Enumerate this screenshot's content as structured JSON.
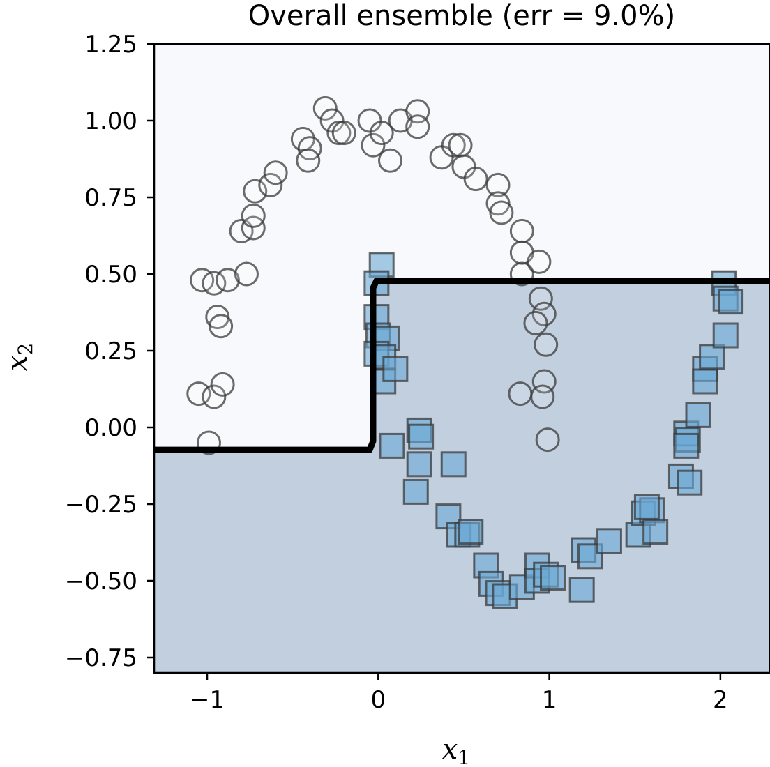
{
  "chart_data": {
    "type": "scatter",
    "title": "Overall ensemble (err = 9.0%)",
    "xlabel": "x",
    "xlabel_sub": "1",
    "ylabel": "x",
    "ylabel_sub": "2",
    "xlim": [
      -1.31,
      2.29
    ],
    "ylim": [
      -0.8,
      1.25
    ],
    "xticks": [
      -1,
      0,
      1,
      2
    ],
    "xtick_labels": [
      "−1",
      "0",
      "1",
      "2"
    ],
    "yticks": [
      1.25,
      1.0,
      0.75,
      0.5,
      0.25,
      0.0,
      -0.25,
      -0.5,
      -0.75
    ],
    "ytick_labels": [
      "1.25",
      "1.00",
      "0.75",
      "0.50",
      "0.25",
      "0.00",
      "−0.25",
      "−0.50",
      "−0.75"
    ],
    "region_colors": {
      "class_0": "#f7f9fc",
      "class_1": "#c1cfdf"
    },
    "decision_boundary": {
      "color": "#000000",
      "points": [
        [
          -1.31,
          -0.073
        ],
        [
          -0.05,
          -0.073
        ],
        [
          -0.03,
          -0.045
        ],
        [
          -0.03,
          0.455
        ],
        [
          -0.01,
          0.478
        ],
        [
          2.29,
          0.478
        ]
      ]
    },
    "series": [
      {
        "marker": "circle",
        "fill": "#ffffff",
        "fill_opacity": 0.15,
        "edge": "#3a3a3a",
        "points": [
          [
            -1.03,
            0.48
          ],
          [
            -0.96,
            0.47
          ],
          [
            -0.88,
            0.48
          ],
          [
            -0.77,
            0.5
          ],
          [
            -0.94,
            0.36
          ],
          [
            -0.92,
            0.33
          ],
          [
            -1.05,
            0.11
          ],
          [
            -0.96,
            0.1
          ],
          [
            -0.91,
            0.14
          ],
          [
            -0.99,
            -0.05
          ],
          [
            -0.8,
            0.64
          ],
          [
            -0.73,
            0.65
          ],
          [
            -0.73,
            0.69
          ],
          [
            -0.72,
            0.77
          ],
          [
            -0.63,
            0.79
          ],
          [
            -0.6,
            0.83
          ],
          [
            -0.44,
            0.94
          ],
          [
            -0.4,
            0.91
          ],
          [
            -0.41,
            0.87
          ],
          [
            -0.31,
            1.04
          ],
          [
            -0.27,
            1.0
          ],
          [
            -0.23,
            0.96
          ],
          [
            -0.2,
            0.96
          ],
          [
            -0.05,
            1.0
          ],
          [
            -0.03,
            0.92
          ],
          [
            0.02,
            0.96
          ],
          [
            0.07,
            0.87
          ],
          [
            0.13,
            1.0
          ],
          [
            0.23,
            1.03
          ],
          [
            0.23,
            0.98
          ],
          [
            0.37,
            0.88
          ],
          [
            0.44,
            0.92
          ],
          [
            0.48,
            0.92
          ],
          [
            0.5,
            0.85
          ],
          [
            0.57,
            0.81
          ],
          [
            0.7,
            0.79
          ],
          [
            0.7,
            0.73
          ],
          [
            0.72,
            0.7
          ],
          [
            0.84,
            0.64
          ],
          [
            0.84,
            0.57
          ],
          [
            0.84,
            0.5
          ],
          [
            0.94,
            0.54
          ],
          [
            0.95,
            0.42
          ],
          [
            0.97,
            0.37
          ],
          [
            0.92,
            0.34
          ],
          [
            0.98,
            0.27
          ],
          [
            0.97,
            0.15
          ],
          [
            0.96,
            0.1
          ],
          [
            0.83,
            0.11
          ],
          [
            0.99,
            -0.04
          ]
        ]
      },
      {
        "marker": "square",
        "fill": "#6ba9d6",
        "fill_opacity": 0.6,
        "edge": "#3a3a3a",
        "points": [
          [
            0.02,
            0.53
          ],
          [
            -0.01,
            0.47
          ],
          [
            -0.01,
            0.36
          ],
          [
            0.0,
            0.3
          ],
          [
            0.05,
            0.29
          ],
          [
            -0.01,
            0.24
          ],
          [
            0.03,
            0.23
          ],
          [
            0.03,
            0.15
          ],
          [
            0.1,
            0.19
          ],
          [
            0.08,
            -0.06
          ],
          [
            0.24,
            -0.01
          ],
          [
            0.25,
            -0.03
          ],
          [
            0.24,
            -0.12
          ],
          [
            0.22,
            -0.21
          ],
          [
            0.44,
            -0.12
          ],
          [
            0.41,
            -0.29
          ],
          [
            0.47,
            -0.35
          ],
          [
            0.52,
            -0.35
          ],
          [
            0.54,
            -0.34
          ],
          [
            0.63,
            -0.45
          ],
          [
            0.66,
            -0.51
          ],
          [
            0.7,
            -0.54
          ],
          [
            0.74,
            -0.55
          ],
          [
            0.84,
            -0.52
          ],
          [
            0.93,
            -0.45
          ],
          [
            0.93,
            -0.5
          ],
          [
            0.98,
            -0.48
          ],
          [
            1.02,
            -0.49
          ],
          [
            1.2,
            -0.4
          ],
          [
            1.24,
            -0.42
          ],
          [
            1.19,
            -0.53
          ],
          [
            1.35,
            -0.37
          ],
          [
            1.52,
            -0.35
          ],
          [
            1.55,
            -0.28
          ],
          [
            1.6,
            -0.27
          ],
          [
            1.62,
            -0.34
          ],
          [
            1.57,
            -0.26
          ],
          [
            1.77,
            -0.16
          ],
          [
            1.82,
            -0.18
          ],
          [
            1.8,
            -0.02
          ],
          [
            1.81,
            -0.04
          ],
          [
            1.8,
            -0.06
          ],
          [
            1.87,
            0.04
          ],
          [
            1.91,
            0.19
          ],
          [
            1.91,
            0.15
          ],
          [
            1.95,
            0.23
          ],
          [
            2.02,
            0.47
          ],
          [
            2.03,
            0.42
          ],
          [
            2.06,
            0.41
          ],
          [
            2.03,
            0.3
          ]
        ]
      }
    ]
  }
}
